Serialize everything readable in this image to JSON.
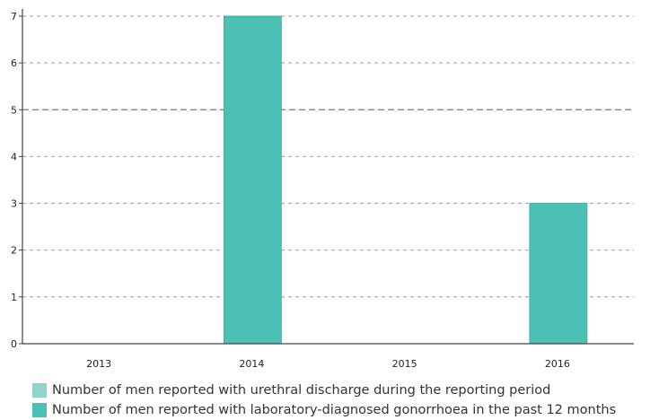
{
  "chart_data": {
    "type": "bar",
    "categories": [
      "2013",
      "2014",
      "2015",
      "2016"
    ],
    "series": [
      {
        "name": "Number of men reported with urethral discharge during the reporting period",
        "color": "#8fd5cd",
        "values": [
          0,
          0,
          0,
          0
        ]
      },
      {
        "name": "Number of men reported with laboratory-diagnosed gonorrhoea in the past 12 months",
        "color": "#4cc0b5",
        "values": [
          0,
          7,
          0,
          3
        ]
      }
    ],
    "y_ticks": [
      "0",
      "1",
      "2",
      "3",
      "4",
      "5",
      "6",
      "7"
    ],
    "ylim": [
      0,
      7
    ],
    "grid": true,
    "legend_position": "bottom-left"
  }
}
